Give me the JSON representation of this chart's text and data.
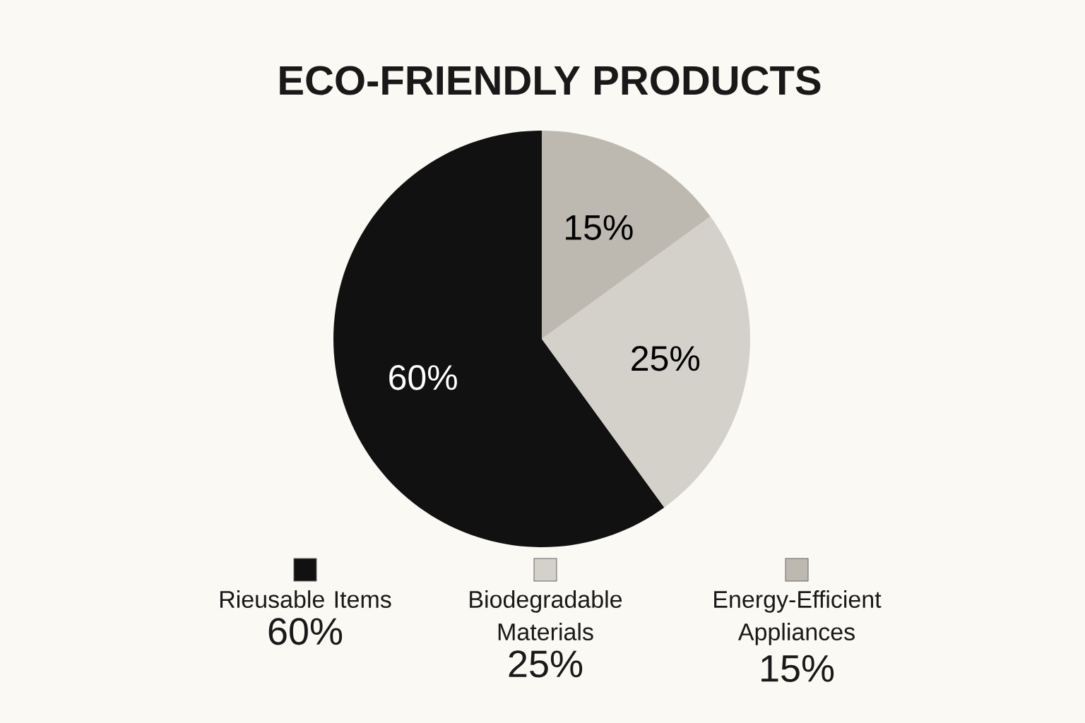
{
  "chart_data": {
    "type": "pie",
    "title": "ECO-FRIENDLY PRODUCTS",
    "categories": [
      "Rieusable Items",
      "Biodegradable Materials",
      "Energy-Efficient Appliances"
    ],
    "values": [
      60,
      25,
      15
    ],
    "colors": [
      "#111111",
      "#d4d1cb",
      "#bdb9b1"
    ],
    "value_labels": [
      "60%",
      "25%",
      "15%"
    ],
    "legend": "bottom"
  }
}
